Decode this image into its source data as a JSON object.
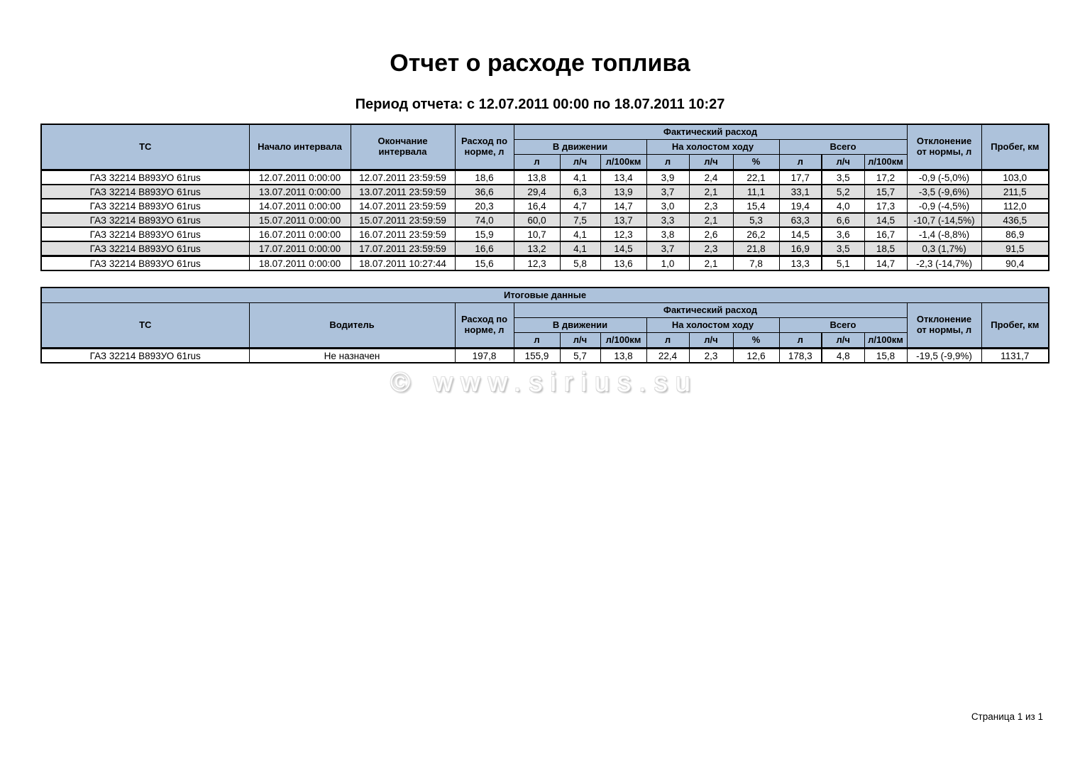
{
  "page": {
    "title": "Отчет о расходе топлива",
    "subtitle": "Период отчета: с 12.07.2011 00:00 по 18.07.2011 10:27",
    "watermark": "© www.sirius.su",
    "footer": "Страница 1 из 1"
  },
  "colors": {
    "header_bg": "#adc2db",
    "stripe_bg": "#e0e0e0",
    "border": "#000000"
  },
  "main_table": {
    "headers": {
      "tc": "ТС",
      "interval_start": "Начало интервала",
      "interval_end": "Окончание\nинтервала",
      "norm": "Расход по\nнорме, л",
      "actual": "Фактический расход",
      "moving": "В движении",
      "idle": "На холостом ходу",
      "total": "Всего",
      "deviation": "Отклонение\nот нормы, л",
      "mileage": "Пробег, км",
      "units": {
        "l": "л",
        "lh": "л/ч",
        "l100": "л/100км",
        "pct": "%"
      }
    },
    "rows": [
      [
        "ГАЗ 32214 В893УО 61rus",
        "12.07.2011 0:00:00",
        "12.07.2011 23:59:59",
        "18,6",
        "13,8",
        "4,1",
        "13,4",
        "3,9",
        "2,4",
        "22,1",
        "17,7",
        "3,5",
        "17,2",
        "-0,9 (-5,0%)",
        "103,0"
      ],
      [
        "ГАЗ 32214 В893УО 61rus",
        "13.07.2011 0:00:00",
        "13.07.2011 23:59:59",
        "36,6",
        "29,4",
        "6,3",
        "13,9",
        "3,7",
        "2,1",
        "11,1",
        "33,1",
        "5,2",
        "15,7",
        "-3,5 (-9,6%)",
        "211,5"
      ],
      [
        "ГАЗ 32214 В893УО 61rus",
        "14.07.2011 0:00:00",
        "14.07.2011 23:59:59",
        "20,3",
        "16,4",
        "4,7",
        "14,7",
        "3,0",
        "2,3",
        "15,4",
        "19,4",
        "4,0",
        "17,3",
        "-0,9 (-4,5%)",
        "112,0"
      ],
      [
        "ГАЗ 32214 В893УО 61rus",
        "15.07.2011 0:00:00",
        "15.07.2011 23:59:59",
        "74,0",
        "60,0",
        "7,5",
        "13,7",
        "3,3",
        "2,1",
        "5,3",
        "63,3",
        "6,6",
        "14,5",
        "-10,7 (-14,5%)",
        "436,5"
      ],
      [
        "ГАЗ 32214 В893УО 61rus",
        "16.07.2011 0:00:00",
        "16.07.2011 23:59:59",
        "15,9",
        "10,7",
        "4,1",
        "12,3",
        "3,8",
        "2,6",
        "26,2",
        "14,5",
        "3,6",
        "16,7",
        "-1,4 (-8,8%)",
        "86,9"
      ],
      [
        "ГАЗ 32214 В893УО 61rus",
        "17.07.2011 0:00:00",
        "17.07.2011 23:59:59",
        "16,6",
        "13,2",
        "4,1",
        "14,5",
        "3,7",
        "2,3",
        "21,8",
        "16,9",
        "3,5",
        "18,5",
        "0,3 (1,7%)",
        "91,5"
      ],
      [
        "ГАЗ 32214 В893УО 61rus",
        "18.07.2011 0:00:00",
        "18.07.2011 10:27:44",
        "15,6",
        "12,3",
        "5,8",
        "13,6",
        "1,0",
        "2,1",
        "7,8",
        "13,3",
        "5,1",
        "14,7",
        "-2,3 (-14,7%)",
        "90,4"
      ]
    ]
  },
  "summary_table": {
    "title": "Итоговые данные",
    "headers": {
      "tc": "ТС",
      "driver": "Водитель",
      "norm": "Расход по\nнорме, л",
      "actual": "Фактический расход",
      "moving": "В движении",
      "idle": "На холостом ходу",
      "total": "Всего",
      "deviation": "Отклонение\nот нормы, л",
      "mileage": "Пробег, км",
      "units": {
        "l": "л",
        "lh": "л/ч",
        "l100": "л/100км",
        "pct": "%"
      }
    },
    "rows": [
      [
        "ГАЗ 32214 В893УО 61rus",
        "Не назначен",
        "197,8",
        "155,9",
        "5,7",
        "13,8",
        "22,4",
        "2,3",
        "12,6",
        "178,3",
        "4,8",
        "15,8",
        "-19,5 (-9,9%)",
        "1131,7"
      ]
    ]
  }
}
